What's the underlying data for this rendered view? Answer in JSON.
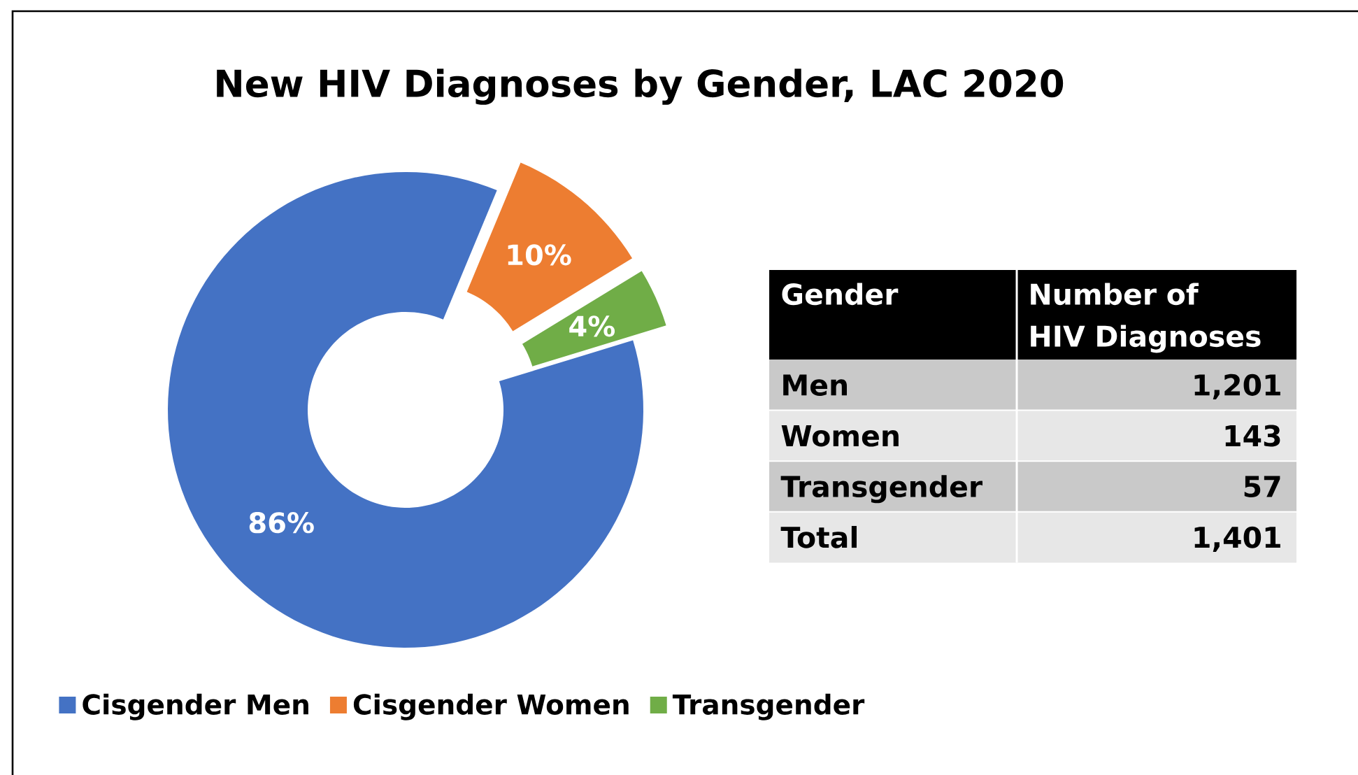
{
  "chart_data": [
    {
      "type": "donut",
      "title": "New HIV Diagnoses by Gender, LAC 2020",
      "categories": [
        "Cisgender Men",
        "Cisgender Women",
        "Transgender"
      ],
      "values": [
        86,
        10,
        4
      ],
      "colors": [
        "#4472c4",
        "#ed7d31",
        "#70ad47"
      ],
      "value_labels": [
        "86%",
        "10%",
        "4%"
      ],
      "legend": "bottom"
    },
    {
      "type": "other",
      "xlabel": "Gender",
      "ylabel": "Number of HIV Diagnoses",
      "categories": [
        "Men",
        "Women",
        "Transgender",
        "Total"
      ],
      "values": [
        1201,
        143,
        57,
        1401
      ],
      "value_labels": [
        "1,201",
        "143",
        "57",
        "1,401"
      ]
    }
  ]
}
